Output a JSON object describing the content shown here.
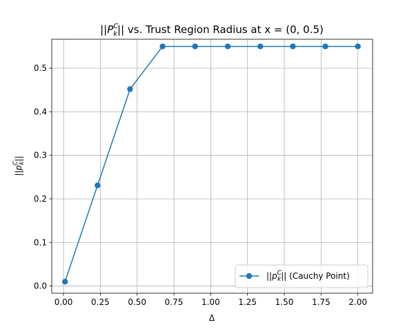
{
  "chart_data": {
    "type": "line",
    "title": "||P_k^C|| vs. Trust Region Radius at x = (0, 0.5)",
    "title_parts": {
      "pre": "||",
      "main": "P",
      "sup": "C",
      "sub": "k",
      "post": "|| vs. Trust Region Radius at x = (0, 0.5)"
    },
    "xlabel": "Δ",
    "ylabel_parts": {
      "pre": "||",
      "main": "p",
      "sup": "C",
      "sub": "k",
      "post": "||"
    },
    "xlim": [
      -0.08,
      2.1
    ],
    "ylim": [
      -0.0165,
      0.5665
    ],
    "xticks": [
      0.0,
      0.25,
      0.5,
      0.75,
      1.0,
      1.25,
      1.5,
      1.75,
      2.0
    ],
    "xtick_labels": [
      "0.00",
      "0.25",
      "0.50",
      "0.75",
      "1.00",
      "1.25",
      "1.50",
      "1.75",
      "2.00"
    ],
    "yticks": [
      0.0,
      0.1,
      0.2,
      0.3,
      0.4,
      0.5
    ],
    "ytick_labels": [
      "0.0",
      "0.1",
      "0.2",
      "0.3",
      "0.4",
      "0.5"
    ],
    "grid": true,
    "legend_position": "lower-right",
    "series": [
      {
        "name": "||p_k^C|| (Cauchy Point)",
        "name_parts": {
          "pre": "||",
          "main": "p",
          "sup": "C",
          "sub": "k",
          "post": "|| (Cauchy Point)"
        },
        "color": "#1f77b4",
        "marker": "circle",
        "x": [
          0.01,
          0.231,
          0.452,
          0.673,
          0.894,
          1.116,
          1.337,
          1.558,
          1.779,
          2.0
        ],
        "y": [
          0.01,
          0.231,
          0.452,
          0.55,
          0.55,
          0.55,
          0.55,
          0.55,
          0.55,
          0.55
        ]
      }
    ]
  }
}
